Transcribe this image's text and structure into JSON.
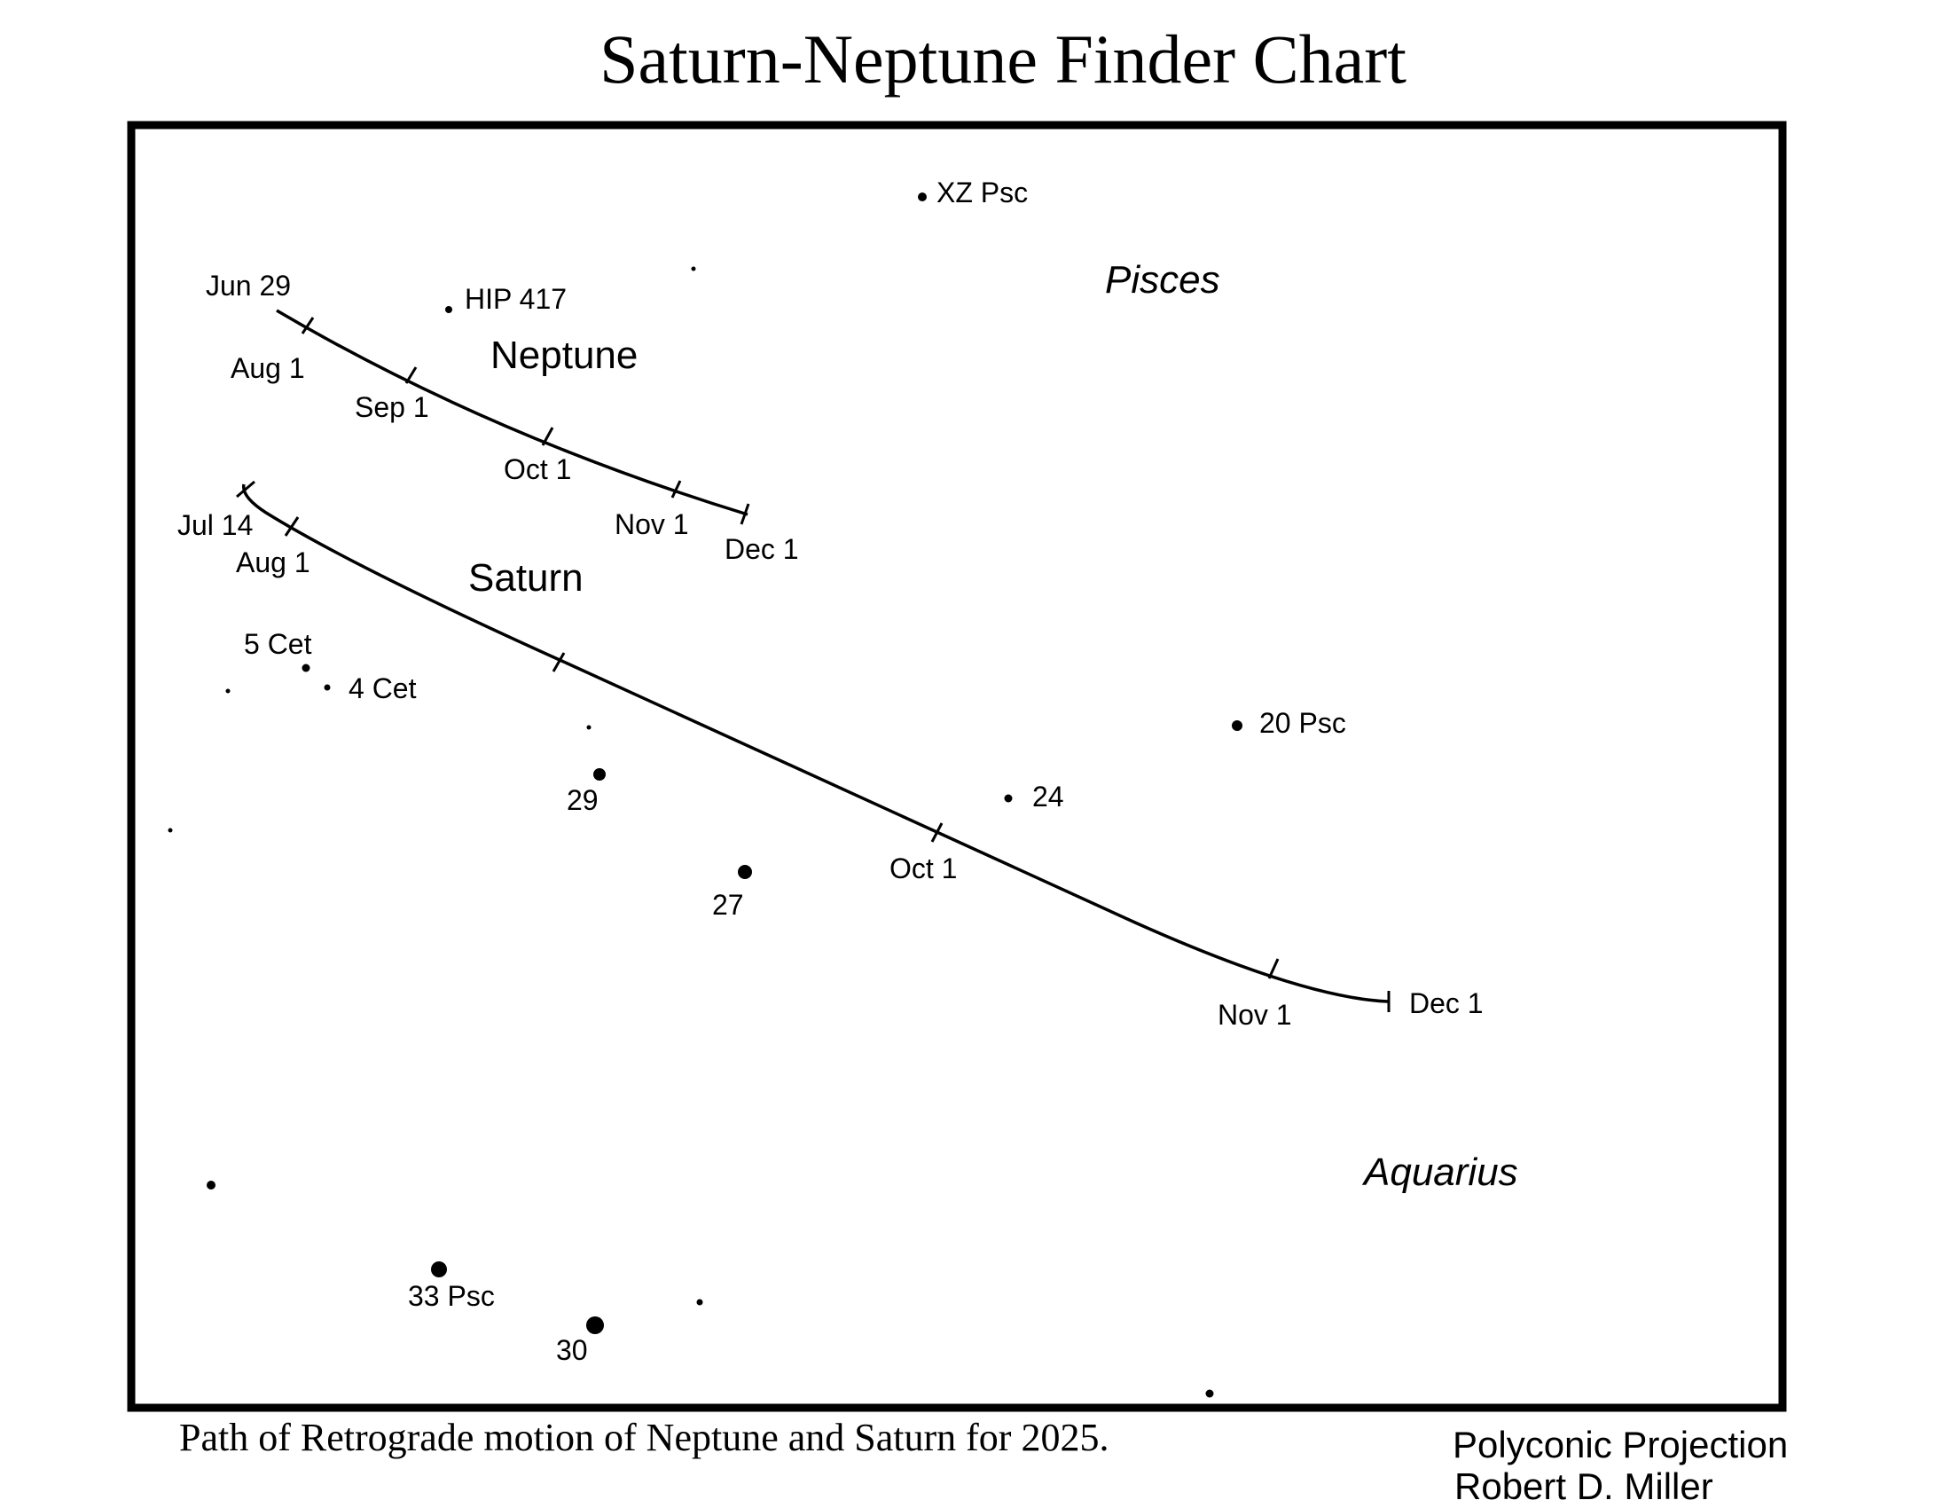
{
  "title": "Saturn-Neptune Finder Chart",
  "caption": "Path of Retrograde motion of Neptune and Saturn for 2025.",
  "projection": "Polyconic Projection",
  "author": "Robert D. Miller",
  "constellations": {
    "pisces": "Pisces",
    "aquarius": "Aquarius"
  },
  "neptune": {
    "name": "Neptune",
    "dates": {
      "start": "Jun 29",
      "aug": "Aug 1",
      "sep": "Sep 1",
      "oct": "Oct 1",
      "nov": "Nov 1",
      "dec": "Dec 1"
    }
  },
  "saturn": {
    "name": "Saturn",
    "dates": {
      "start": "Jul 14",
      "aug": "Aug 1",
      "oct": "Oct 1",
      "nov": "Nov 1",
      "dec": "Dec 1"
    }
  },
  "stars": {
    "xz_psc": "XZ Psc",
    "hip_417": "HIP 417",
    "five_cet": "5 Cet",
    "four_cet": "4 Cet",
    "twenty_psc": "20 Psc",
    "s24": "24",
    "s29": "29",
    "s27": "27",
    "thirtythree_psc": "33 Psc",
    "s30": "30"
  },
  "colors": {
    "ink": "#000000",
    "background": "#ffffff"
  }
}
